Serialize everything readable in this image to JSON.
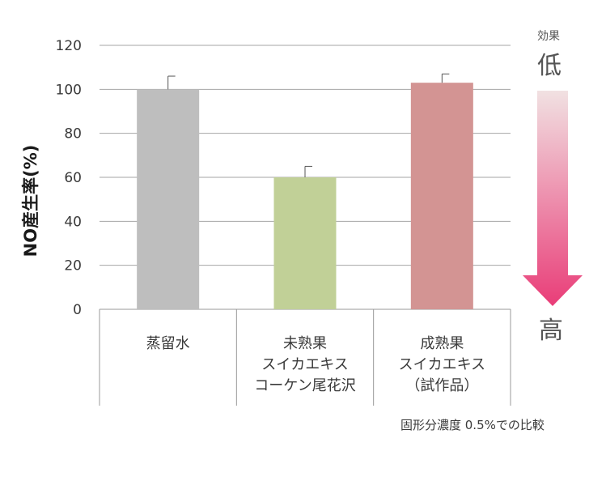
{
  "chart_data": {
    "type": "bar",
    "ylabel": "NO産生率(%)",
    "ylim": [
      0,
      120
    ],
    "yticks": [
      0,
      20,
      40,
      60,
      80,
      100,
      120
    ],
    "grid": true,
    "categories": [
      [
        "蒸留水"
      ],
      [
        "未熟果",
        "スイカエキス",
        "コーケン尾花沢"
      ],
      [
        "成熟果",
        "スイカエキス",
        "（試作品）"
      ]
    ],
    "values": [
      100,
      60,
      103
    ],
    "errors": [
      6,
      5,
      4
    ],
    "colors": [
      "#bebebe",
      "#c1d097",
      "#d39493"
    ]
  },
  "legend": {
    "top_small": "効果",
    "top_big": "低",
    "bottom_big": "高",
    "gradient_top": "#f1e1e2",
    "gradient_bottom": "#e93d78"
  },
  "note": "固形分濃度 0.5%での比較"
}
